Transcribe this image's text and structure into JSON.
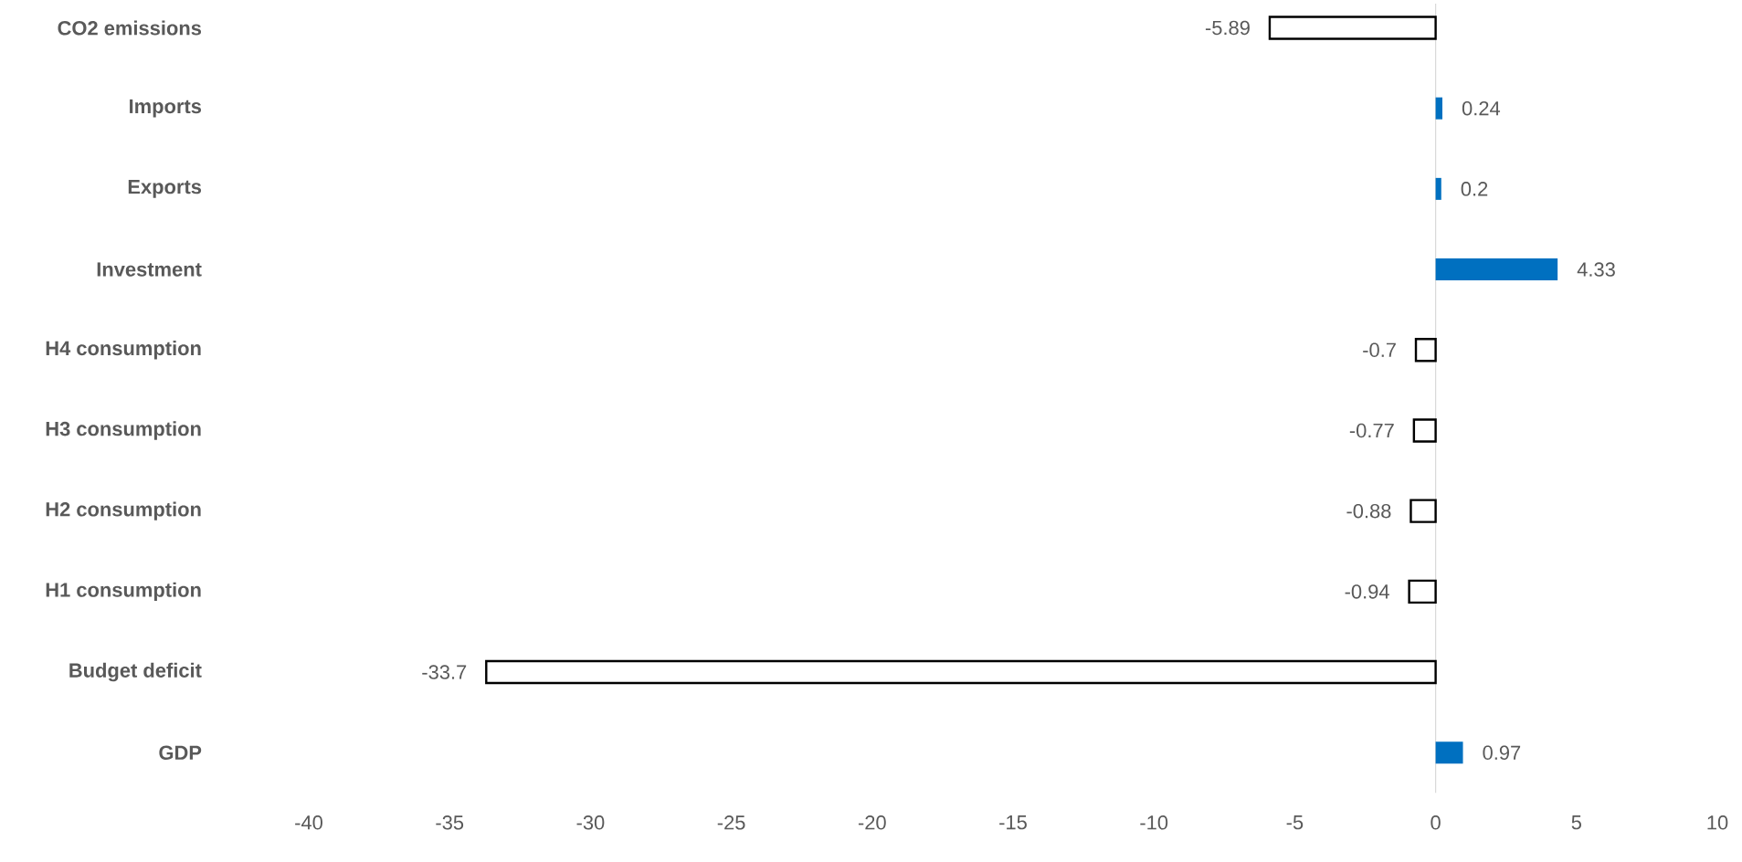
{
  "chart_data": {
    "type": "bar",
    "orientation": "horizontal",
    "categories": [
      "CO2 emissions",
      "Imports",
      "Exports",
      "Investment",
      "H4 consumption",
      "H3 consumption",
      "H2 consumption",
      "H1 consumption",
      "Budget deficit",
      "GDP"
    ],
    "values": [
      -5.89,
      0.24,
      0.2,
      4.33,
      -0.7,
      -0.77,
      -0.88,
      -0.94,
      -33.7,
      0.97
    ],
    "colors": [
      "#ffffff",
      "#0070c0",
      "#0070c0",
      "#0070c0",
      "#ffffff",
      "#ffffff",
      "#ffffff",
      "#ffffff",
      "#ffffff",
      "#0070c0"
    ],
    "xlim": [
      -40,
      10
    ],
    "xticks": [
      -40,
      -35,
      -30,
      -25,
      -20,
      -15,
      -10,
      -5,
      0,
      5,
      10
    ],
    "data_labels": true,
    "ref_lines": [
      {
        "axis": "x",
        "value": 0,
        "color": "#d9d9d9"
      }
    ]
  }
}
